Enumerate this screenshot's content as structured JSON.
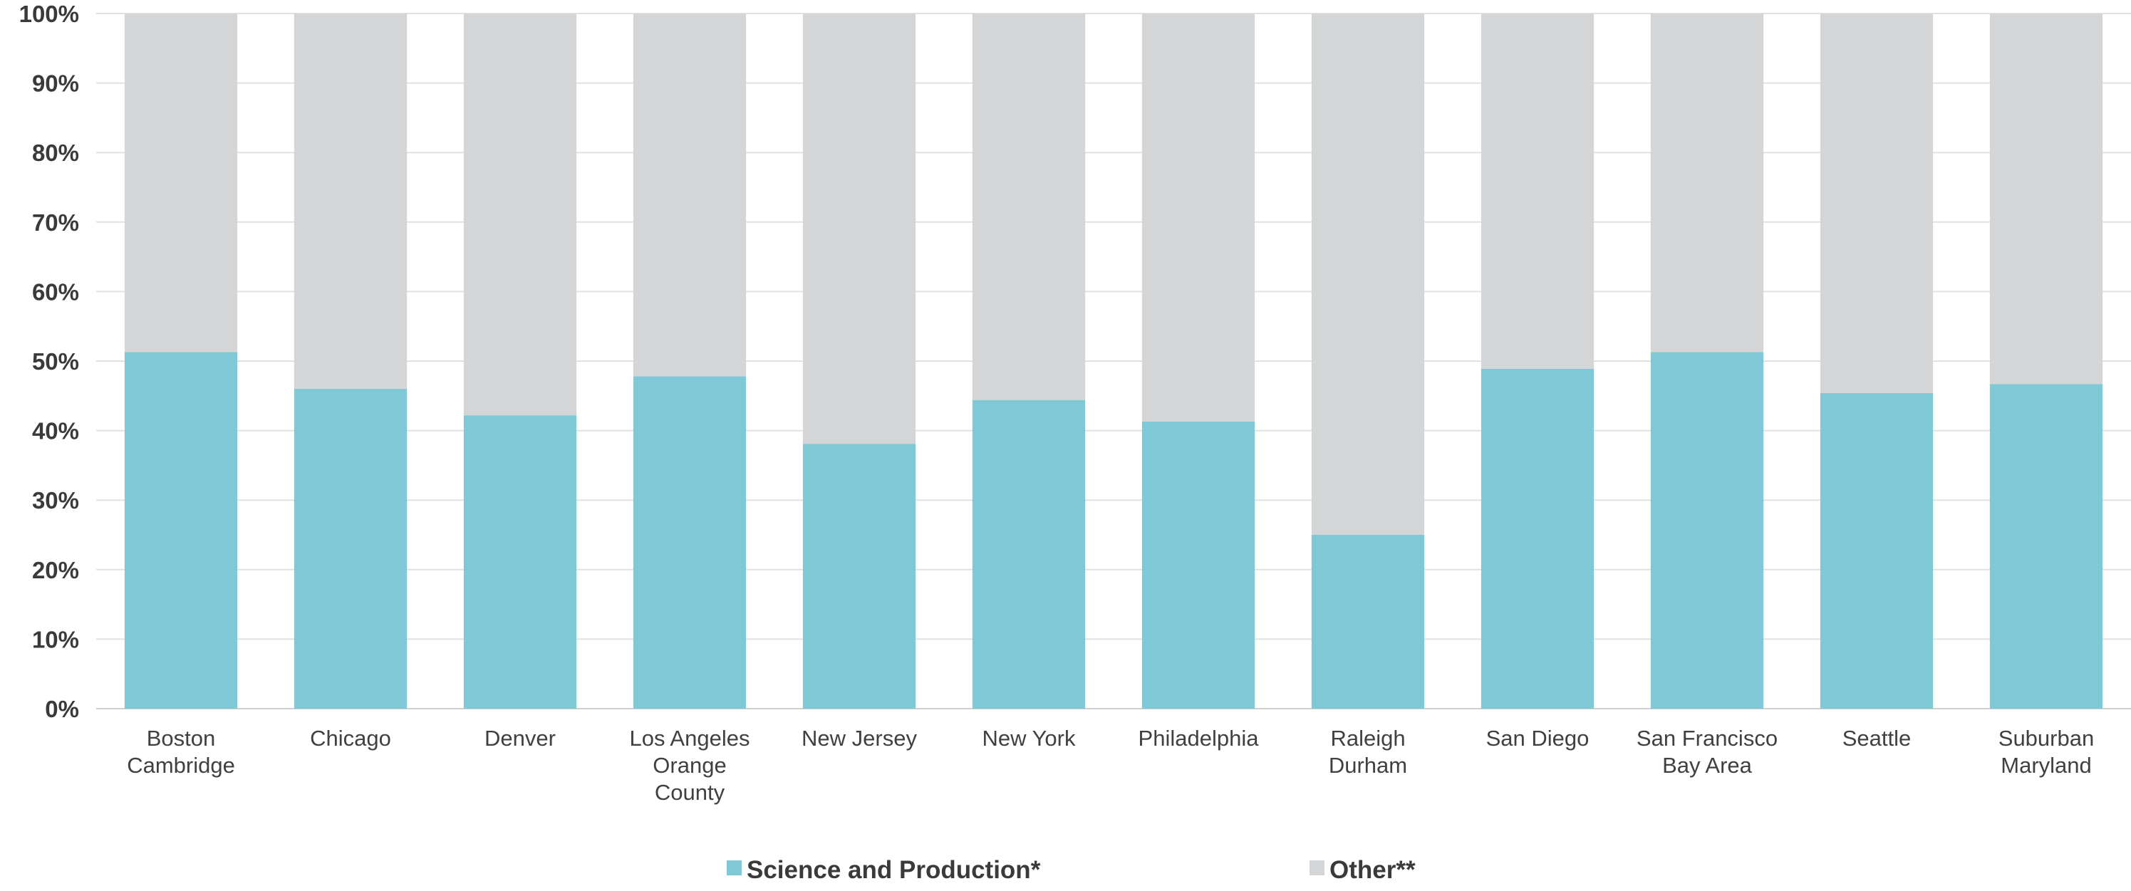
{
  "chart_data": {
    "type": "bar",
    "stacked": true,
    "normalized": true,
    "categories": [
      "Boston Cambridge",
      "Chicago",
      "Denver",
      "Los Angeles Orange County",
      "New Jersey",
      "New York",
      "Philadelphia",
      "Raleigh Durham",
      "San Diego",
      "San Francisco Bay Area",
      "Seattle",
      "Suburban Maryland"
    ],
    "category_lines": [
      [
        "Boston",
        "Cambridge"
      ],
      [
        "Chicago"
      ],
      [
        "Denver"
      ],
      [
        "Los Angeles",
        "Orange",
        "County"
      ],
      [
        "New Jersey"
      ],
      [
        "New York"
      ],
      [
        "Philadelphia"
      ],
      [
        "Raleigh",
        "Durham"
      ],
      [
        "San Diego"
      ],
      [
        "San Francisco",
        "Bay Area"
      ],
      [
        "Seattle"
      ],
      [
        "Suburban",
        "Maryland"
      ]
    ],
    "series": [
      {
        "name": "Science and Production*",
        "color": "#7fc8d6",
        "values": [
          51.3,
          46.0,
          42.2,
          47.8,
          38.1,
          44.4,
          41.3,
          25.0,
          48.9,
          51.3,
          45.4,
          46.7
        ]
      },
      {
        "name": "Other**",
        "color": "#d4d5d7",
        "values": [
          48.7,
          54.0,
          57.8,
          52.2,
          61.9,
          55.6,
          58.7,
          75.0,
          51.1,
          48.7,
          54.6,
          53.3
        ]
      }
    ],
    "yticks": [
      "0%",
      "10%",
      "20%",
      "30%",
      "40%",
      "50%",
      "60%",
      "70%",
      "80%",
      "90%",
      "100%"
    ],
    "ylim": [
      0,
      100
    ],
    "grid": true,
    "legend_position": "bottom-center",
    "title": "",
    "xlabel": "",
    "ylabel": ""
  }
}
